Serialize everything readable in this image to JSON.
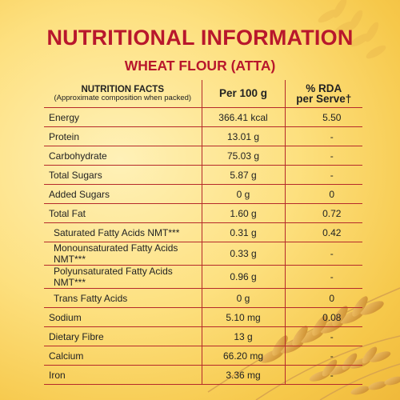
{
  "title": "NUTRITIONAL INFORMATION",
  "subtitle": "WHEAT FLOUR (ATTA)",
  "table": {
    "headers": {
      "facts": "NUTRITION FACTS",
      "facts_note": "(Approximate composition when packed)",
      "per100": "Per 100 g",
      "rda_line1": "% RDA",
      "rda_line2": "per Serve†"
    },
    "rows": [
      {
        "name": "Energy",
        "value": "366.41 kcal",
        "rda": "5.50"
      },
      {
        "name": "Protein",
        "value": "13.01 g",
        "rda": "-"
      },
      {
        "name": "Carbohydrate",
        "value": "75.03 g",
        "rda": "-"
      },
      {
        "name": "Total Sugars",
        "value": "5.87 g",
        "rda": "-"
      },
      {
        "name": "Added Sugars",
        "value": "0 g",
        "rda": "0"
      },
      {
        "name": "Total Fat",
        "value": "1.60 g",
        "rda": "0.72"
      },
      {
        "name": "Saturated Fatty Acids NMT***",
        "value": "0.31 g",
        "rda": "0.42"
      },
      {
        "name": "Monounsaturated Fatty Acids NMT***",
        "value": "0.33 g",
        "rda": "-"
      },
      {
        "name": "Polyunsaturated Fatty Acids NMT***",
        "value": "0.96 g",
        "rda": "-"
      },
      {
        "name": "Trans Fatty Acids",
        "value": "0 g",
        "rda": "0"
      },
      {
        "name": "Sodium",
        "value": "5.10 mg",
        "rda": "0.08"
      },
      {
        "name": "Dietary Fibre",
        "value": "13 g",
        "rda": "-"
      },
      {
        "name": "Calcium",
        "value": "66.20 mg",
        "rda": "-"
      },
      {
        "name": "Iron",
        "value": "3.36 mg",
        "rda": "-"
      }
    ]
  },
  "colors": {
    "accent": "#b8172c",
    "border": "#b52a2a",
    "background": "#fde07f"
  }
}
